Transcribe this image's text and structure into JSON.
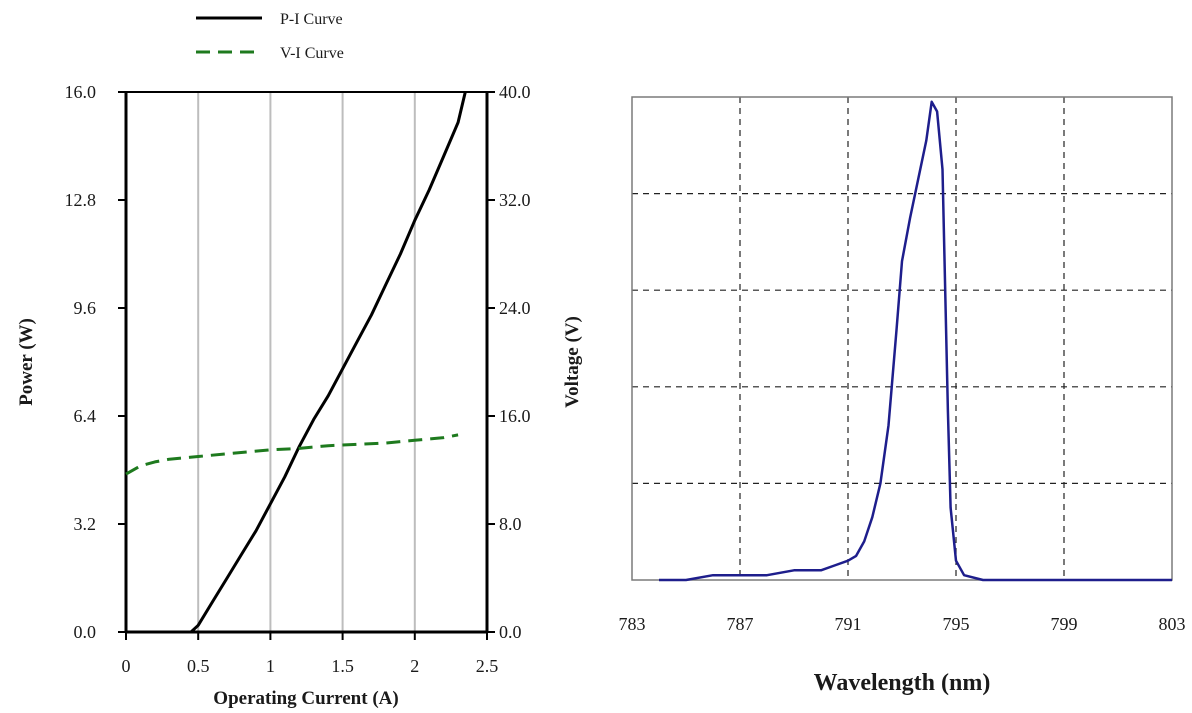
{
  "chart_data": [
    {
      "type": "line",
      "xlabel": "Operating Current (A)",
      "ylabel": "Power (W)",
      "y2label": "Voltage (V)",
      "xlim": [
        0,
        2.5
      ],
      "ylim": [
        0,
        16
      ],
      "y2lim": [
        0,
        40
      ],
      "x_ticks": [
        "0",
        "0.5",
        "1",
        "1.5",
        "2",
        "2.5"
      ],
      "y_ticks": [
        "0.0",
        "3.2",
        "6.4",
        "9.6",
        "12.8",
        "16.0"
      ],
      "y2_ticks": [
        "0.0",
        "8.0",
        "16.0",
        "24.0",
        "32.0",
        "40.0"
      ],
      "grid": "vertical",
      "legend_placement": "top-left",
      "series": [
        {
          "name": "P-I Curve",
          "axis": "left",
          "color": "#000000",
          "style": "solid",
          "points": [
            [
              0,
              0
            ],
            [
              0.45,
              0
            ],
            [
              0.5,
              0.2
            ],
            [
              0.6,
              0.9
            ],
            [
              0.7,
              1.6
            ],
            [
              0.8,
              2.3
            ],
            [
              0.9,
              3.0
            ],
            [
              1.0,
              3.8
            ],
            [
              1.1,
              4.6
            ],
            [
              1.2,
              5.5
            ],
            [
              1.3,
              6.3
            ],
            [
              1.4,
              7.0
            ],
            [
              1.5,
              7.8
            ],
            [
              1.6,
              8.6
            ],
            [
              1.7,
              9.4
            ],
            [
              1.8,
              10.3
            ],
            [
              1.9,
              11.2
            ],
            [
              2.0,
              12.2
            ],
            [
              2.1,
              13.1
            ],
            [
              2.2,
              14.1
            ],
            [
              2.3,
              15.1
            ],
            [
              2.35,
              16.0
            ]
          ]
        },
        {
          "name": "V-I Curve",
          "axis": "right",
          "color": "#1e7a1e",
          "style": "dashed",
          "points": [
            [
              0,
              11.7
            ],
            [
              0.1,
              12.3
            ],
            [
              0.2,
              12.6
            ],
            [
              0.3,
              12.8
            ],
            [
              0.5,
              13.0
            ],
            [
              0.7,
              13.2
            ],
            [
              0.9,
              13.4
            ],
            [
              1.0,
              13.5
            ],
            [
              1.2,
              13.6
            ],
            [
              1.4,
              13.8
            ],
            [
              1.6,
              13.9
            ],
            [
              1.8,
              14.0
            ],
            [
              2.0,
              14.2
            ],
            [
              2.2,
              14.4
            ],
            [
              2.3,
              14.6
            ]
          ]
        }
      ]
    },
    {
      "type": "line",
      "xlabel": "Wavelength (nm)",
      "ylabel": "",
      "xlim": [
        783,
        803
      ],
      "x_ticks": [
        "783",
        "787",
        "791",
        "795",
        "799",
        "803"
      ],
      "grid": "dashed",
      "series": [
        {
          "name": "",
          "color": "#1e1e8c",
          "style": "solid",
          "points": [
            [
              784,
              0.0
            ],
            [
              785,
              0.0
            ],
            [
              786,
              0.01
            ],
            [
              787,
              0.01
            ],
            [
              788,
              0.01
            ],
            [
              789,
              0.02
            ],
            [
              790,
              0.02
            ],
            [
              790.5,
              0.03
            ],
            [
              791,
              0.04
            ],
            [
              791.3,
              0.05
            ],
            [
              791.6,
              0.08
            ],
            [
              791.9,
              0.13
            ],
            [
              792.2,
              0.2
            ],
            [
              792.5,
              0.32
            ],
            [
              792.8,
              0.52
            ],
            [
              793.0,
              0.66
            ],
            [
              793.3,
              0.75
            ],
            [
              793.6,
              0.83
            ],
            [
              793.9,
              0.91
            ],
            [
              794.1,
              0.99
            ],
            [
              794.3,
              0.97
            ],
            [
              794.5,
              0.85
            ],
            [
              794.6,
              0.6
            ],
            [
              794.7,
              0.35
            ],
            [
              794.8,
              0.15
            ],
            [
              795.0,
              0.04
            ],
            [
              795.3,
              0.01
            ],
            [
              796,
              0.0
            ],
            [
              798,
              0.0
            ],
            [
              800,
              0.0
            ],
            [
              803,
              0.0
            ]
          ]
        }
      ]
    }
  ]
}
